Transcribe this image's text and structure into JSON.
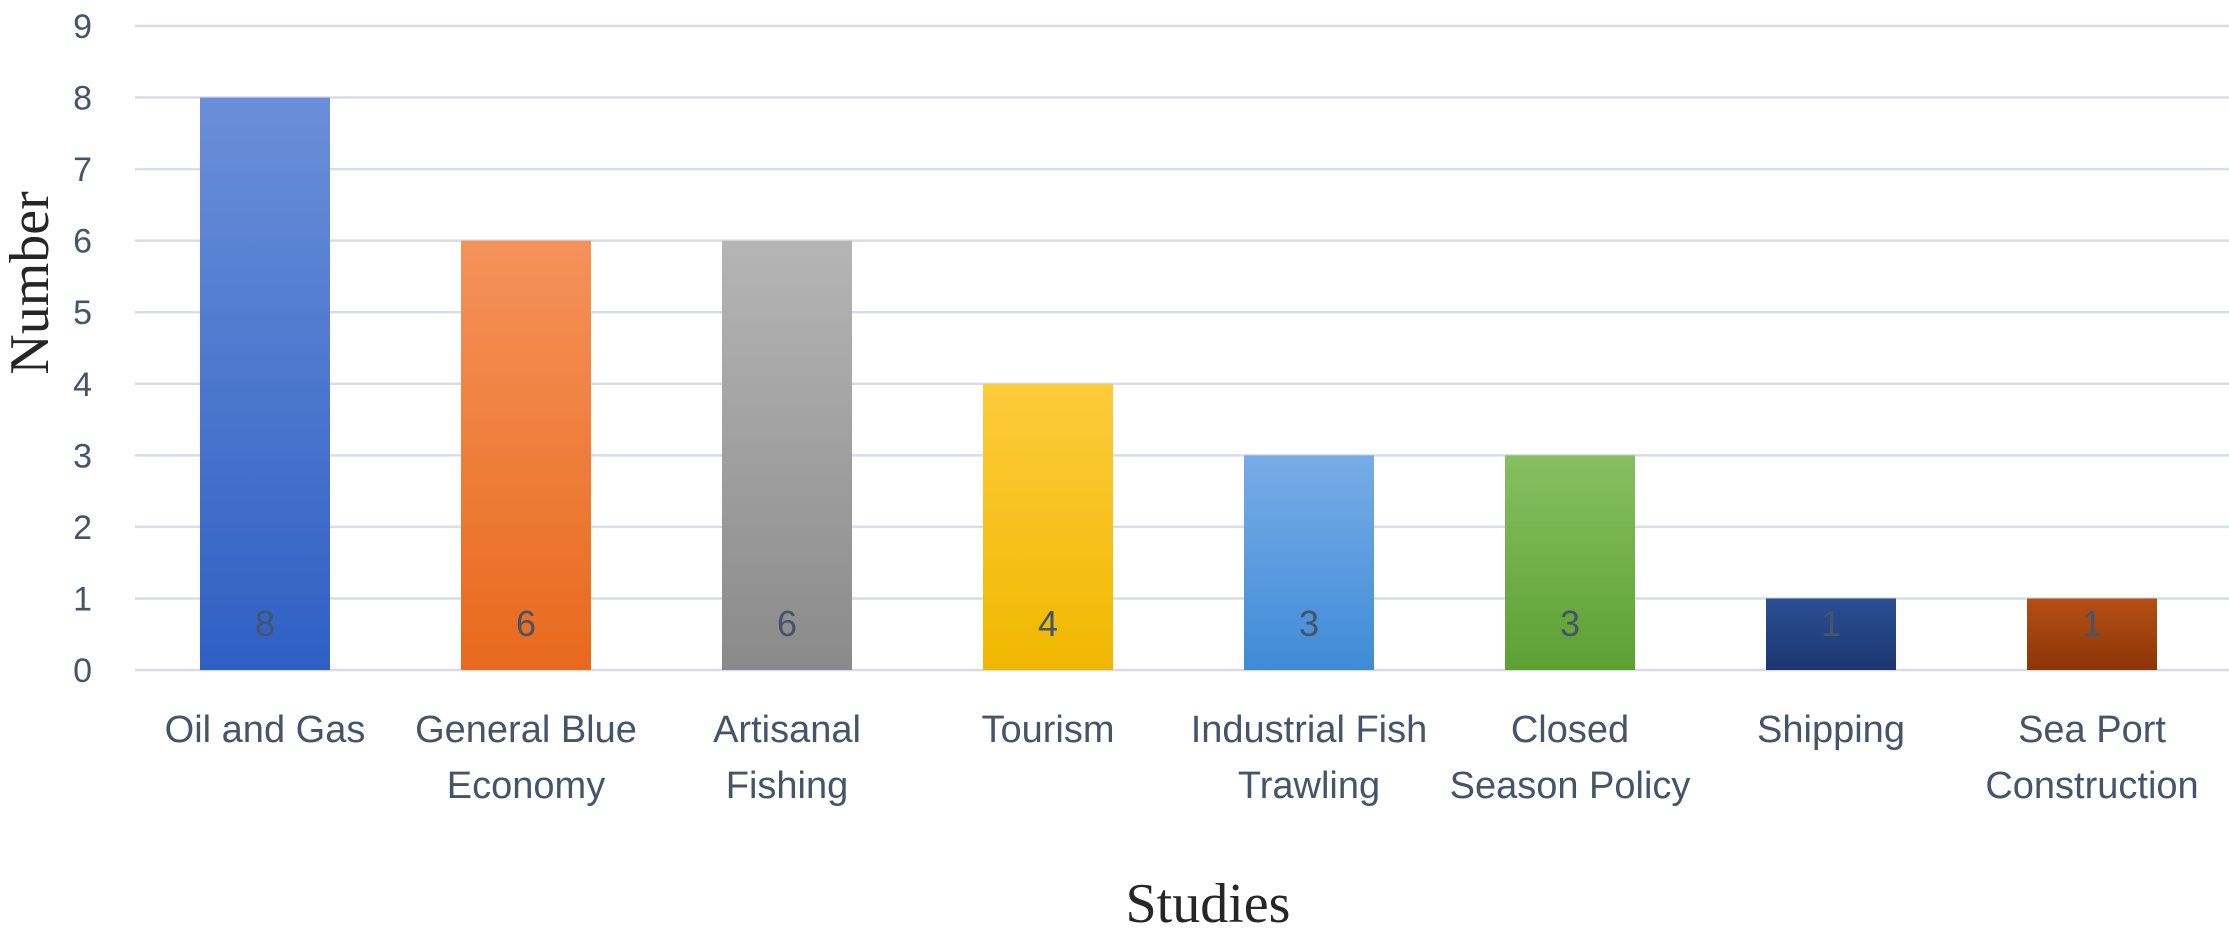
{
  "chart_data": {
    "type": "bar",
    "xlabel": "Studies",
    "ylabel": "Number",
    "ylim": [
      0,
      9
    ],
    "yticks": [
      0,
      1,
      2,
      3,
      4,
      5,
      6,
      7,
      8,
      9
    ],
    "grid": true,
    "legend": "none",
    "categories": [
      [
        "Oil and Gas"
      ],
      [
        "General Blue",
        "Economy"
      ],
      [
        "Artisanal",
        "Fishing"
      ],
      [
        "Tourism"
      ],
      [
        "Industrial Fish",
        "Trawling"
      ],
      [
        "Closed",
        "Season Policy"
      ],
      [
        "Shipping"
      ],
      [
        "Sea Port",
        "Construction"
      ]
    ],
    "values": [
      8,
      6,
      6,
      4,
      3,
      3,
      1,
      1
    ],
    "colors": [
      [
        "#6a8fd8",
        "#2f5fc4"
      ],
      [
        "#f5925a",
        "#e8691c"
      ],
      [
        "#b5b5b5",
        "#8a8a8a"
      ],
      [
        "#fdcb3c",
        "#f0b800"
      ],
      [
        "#77ace6",
        "#3f8bd6"
      ],
      [
        "#87bf61",
        "#5ca032"
      ],
      [
        "#2c4f94",
        "#1b3670"
      ],
      [
        "#b44f14",
        "#8e3508"
      ]
    ]
  }
}
